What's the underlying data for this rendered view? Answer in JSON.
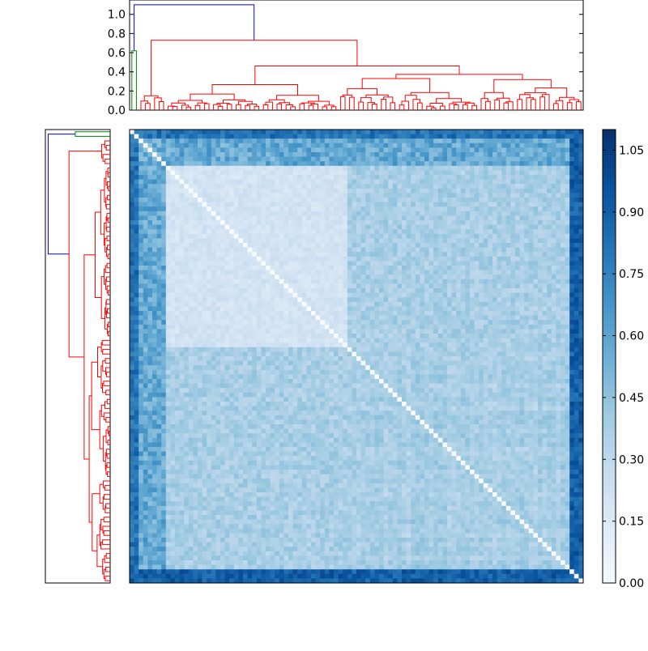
{
  "chart_data": [
    {
      "panel": "top-dendrogram",
      "type": "dendrogram",
      "orientation": "top",
      "ylim": [
        0,
        1.15
      ],
      "yticks": [
        0.0,
        0.2,
        0.4,
        0.6,
        0.8,
        1.0
      ],
      "ytick_labels": [
        "0.0",
        "0.2",
        "0.4",
        "0.6",
        "0.8",
        "1.0"
      ],
      "leaf_count": 100,
      "colors": {
        "above_threshold": "#0000ff",
        "cluster_small": "#008000",
        "cluster_large": "#ff0000"
      },
      "clusters": [
        {
          "color": "green",
          "leaves": 2,
          "merge_height": 0.62
        },
        {
          "color": "red",
          "leaves": 98,
          "merge_height": 0.73
        }
      ],
      "root_merge_height": 1.1,
      "notable_merges": [
        0.73,
        0.56,
        0.52,
        0.48,
        0.38,
        0.37,
        0.33,
        0.29,
        0.27,
        0.22,
        0.2,
        0.16
      ]
    },
    {
      "panel": "left-dendrogram",
      "type": "dendrogram",
      "orientation": "left",
      "leaf_count": 100,
      "clusters": [
        {
          "color": "green",
          "leaves": 2
        },
        {
          "color": "red",
          "leaves": 98
        }
      ]
    },
    {
      "panel": "heatmap",
      "type": "heatmap",
      "rows": 100,
      "cols": 100,
      "matrix": "symmetric distance matrix, zero on diagonal",
      "value_range": [
        0.0,
        1.1
      ],
      "block_levels": [
        {
          "rows": [
            0,
            2
          ],
          "value": 0.78
        },
        {
          "rows": [
            2,
            8
          ],
          "value": 0.55
        },
        {
          "rows": [
            8,
            48
          ],
          "value_within": 0.2,
          "value_between": 0.3
        },
        {
          "rows": [
            48,
            97
          ],
          "value_within": 0.3,
          "value_between": 0.4
        },
        {
          "rows": [
            97,
            100
          ],
          "value": 0.92
        }
      ],
      "colormap": "Blues"
    },
    {
      "panel": "colorbar",
      "type": "colorbar",
      "range": [
        0.0,
        1.1
      ],
      "ticks": [
        0.0,
        0.15,
        0.3,
        0.45,
        0.6,
        0.75,
        0.9,
        1.05
      ],
      "tick_labels": [
        "0.00",
        "0.15",
        "0.30",
        "0.45",
        "0.60",
        "0.75",
        "0.90",
        "1.05"
      ],
      "colormap": "Blues"
    }
  ]
}
